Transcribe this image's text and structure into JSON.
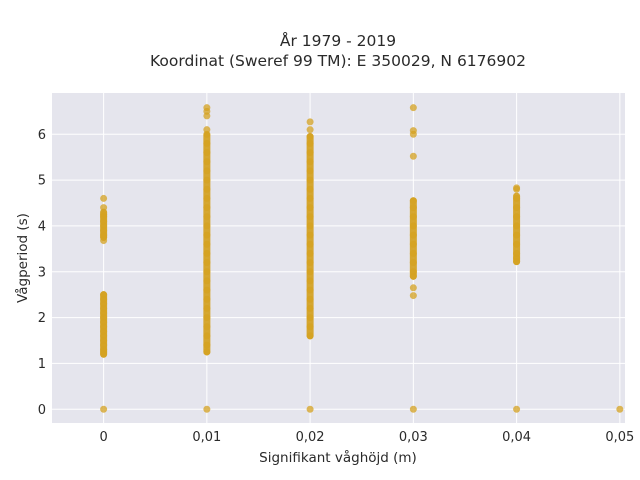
{
  "chart_data": {
    "type": "scatter",
    "title": "År 1979 - 2019",
    "subtitle": "Koordinat (Sweref 99 TM): E 350029, N 6176902",
    "xlabel": "Signifikant våghöjd (m)",
    "ylabel": "Vågperiod (s)",
    "xlim": [
      -0.005,
      0.0505
    ],
    "ylim": [
      -0.3,
      6.9
    ],
    "x_ticks": [
      0,
      0.01,
      0.02,
      0.03,
      0.04,
      0.05
    ],
    "x_tick_labels": [
      "0",
      "0,01",
      "0,02",
      "0,03",
      "0,04",
      "0,05"
    ],
    "y_ticks": [
      0,
      1,
      2,
      3,
      4,
      5,
      6
    ],
    "y_tick_labels": [
      "0",
      "1",
      "2",
      "3",
      "4",
      "5",
      "6"
    ],
    "grid": true,
    "background": "#e5e5ed",
    "marker_color": "#d4a120",
    "points_by_x": [
      {
        "x": 0,
        "y": [
          0,
          1.2,
          1.25,
          1.3,
          1.4,
          1.5,
          1.6,
          1.7,
          1.8,
          1.9,
          2.0,
          2.1,
          2.2,
          2.3,
          2.4,
          2.5,
          3.68,
          3.75,
          3.8,
          3.9,
          4.0,
          4.1,
          4.2,
          4.25,
          4.4,
          4.6
        ]
      },
      {
        "x": 0.01,
        "y": [
          0,
          1.25,
          1.4,
          1.6,
          1.8,
          2.0,
          2.2,
          2.4,
          2.6,
          2.8,
          3.0,
          3.2,
          3.4,
          3.6,
          3.8,
          4.0,
          4.2,
          4.4,
          4.6,
          4.8,
          5.0,
          5.2,
          5.4,
          5.6,
          5.8,
          6.0,
          6.1,
          6.4,
          6.5,
          6.58
        ]
      },
      {
        "x": 0.02,
        "y": [
          0,
          1.6,
          1.8,
          2.0,
          2.2,
          2.4,
          2.6,
          2.8,
          3.0,
          3.2,
          3.4,
          3.6,
          3.8,
          4.0,
          4.2,
          4.4,
          4.6,
          4.8,
          5.0,
          5.2,
          5.4,
          5.6,
          5.8,
          5.95,
          6.1,
          6.27
        ]
      },
      {
        "x": 0.03,
        "y": [
          0,
          2.48,
          2.65,
          2.9,
          3.0,
          3.2,
          3.4,
          3.6,
          3.8,
          4.0,
          4.2,
          4.4,
          4.55,
          5.52,
          6.0,
          6.08,
          6.58
        ]
      },
      {
        "x": 0.04,
        "y": [
          0,
          3.22,
          3.3,
          3.4,
          3.6,
          3.8,
          4.0,
          4.2,
          4.4,
          4.6,
          4.8,
          4.83
        ]
      },
      {
        "x": 0.05,
        "y": [
          0
        ]
      }
    ],
    "dense_ranges": [
      {
        "x": 0,
        "from": 1.2,
        "to": 2.5
      },
      {
        "x": 0,
        "from": 3.75,
        "to": 4.3
      },
      {
        "x": 0.01,
        "from": 1.25,
        "to": 5.98
      },
      {
        "x": 0.02,
        "from": 1.6,
        "to": 5.95
      },
      {
        "x": 0.03,
        "from": 2.9,
        "to": 4.55
      },
      {
        "x": 0.04,
        "from": 3.22,
        "to": 4.65
      }
    ]
  }
}
